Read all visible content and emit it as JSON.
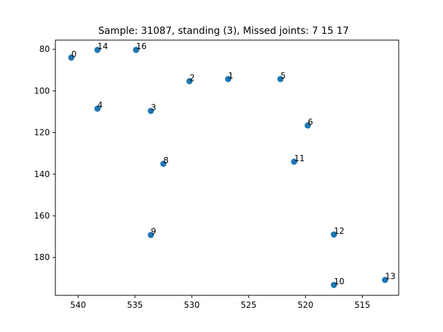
{
  "chart_data": {
    "type": "scatter",
    "title": "Sample: 31087, standing (3), Missed joints: 7  15  17",
    "xlabel": "",
    "ylabel": "",
    "xlim": [
      542.0,
      511.8
    ],
    "ylim": [
      198.2,
      75.6
    ],
    "x_ticks": [
      540,
      535,
      530,
      525,
      520,
      515
    ],
    "y_ticks": [
      80,
      100,
      120,
      140,
      160,
      180
    ],
    "x_inverted": true,
    "y_inverted": true,
    "grid": false,
    "marker_color": "#1f77b4",
    "points": [
      {
        "label": "0",
        "x": 540.6,
        "y": 84.0
      },
      {
        "label": "1",
        "x": 526.8,
        "y": 94.3
      },
      {
        "label": "2",
        "x": 530.2,
        "y": 95.3
      },
      {
        "label": "3",
        "x": 533.6,
        "y": 109.6
      },
      {
        "label": "4",
        "x": 538.3,
        "y": 108.5
      },
      {
        "label": "5",
        "x": 522.2,
        "y": 94.3
      },
      {
        "label": "6",
        "x": 519.8,
        "y": 116.6
      },
      {
        "label": "8",
        "x": 532.5,
        "y": 135.0
      },
      {
        "label": "9",
        "x": 533.6,
        "y": 169.2
      },
      {
        "label": "10",
        "x": 517.5,
        "y": 193.2
      },
      {
        "label": "11",
        "x": 521.0,
        "y": 134.0
      },
      {
        "label": "12",
        "x": 517.5,
        "y": 169.0
      },
      {
        "label": "13",
        "x": 513.0,
        "y": 190.8
      },
      {
        "label": "14",
        "x": 538.3,
        "y": 80.3
      },
      {
        "label": "16",
        "x": 534.9,
        "y": 80.3
      }
    ]
  }
}
